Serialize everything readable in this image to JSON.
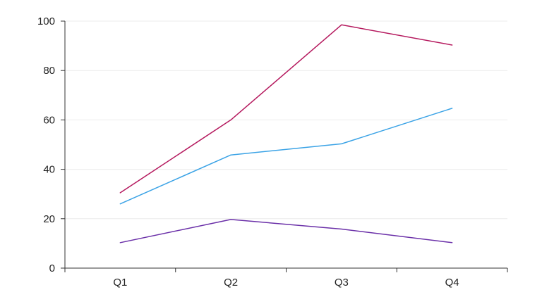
{
  "chart_data": {
    "type": "line",
    "title": "",
    "xlabel": "",
    "ylabel": "",
    "categories": [
      "Q1",
      "Q2",
      "Q3",
      "Q4"
    ],
    "ylim": [
      0,
      100
    ],
    "yticks": [
      0,
      20,
      40,
      60,
      80,
      100
    ],
    "grid": true,
    "legend": "none",
    "series": [
      {
        "color": "#b5195e",
        "values": [
          30.5,
          60,
          98.5,
          90.3
        ]
      },
      {
        "color": "#3ba3e6",
        "values": [
          26,
          45.8,
          50.3,
          64.7
        ]
      },
      {
        "color": "#6a2fa8",
        "values": [
          10.3,
          19.7,
          15.8,
          10.3
        ]
      }
    ]
  }
}
